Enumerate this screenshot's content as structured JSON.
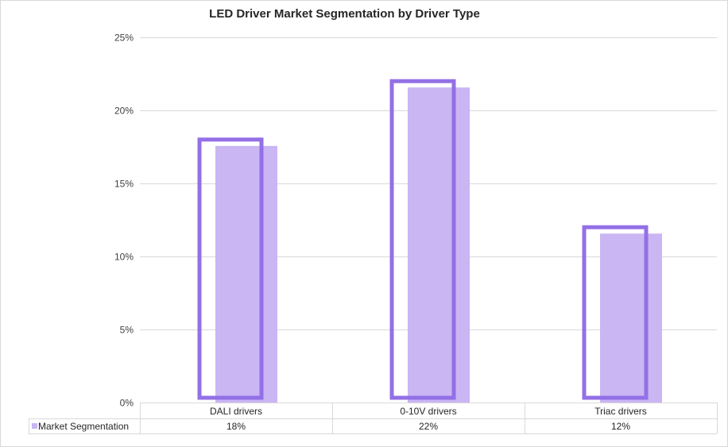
{
  "chart_data": {
    "type": "bar",
    "title": "LED Driver Market Segmentation by Driver Type",
    "categories": [
      "DALI drivers",
      "0-10V drivers",
      "Triac drivers"
    ],
    "series": [
      {
        "name": "Market Segmentation",
        "values": [
          0.18,
          0.22,
          0.12
        ],
        "labels": [
          "18%",
          "22%",
          "12%"
        ]
      }
    ],
    "ylim": [
      0,
      0.25
    ],
    "yticks": [
      0,
      0.05,
      0.1,
      0.15,
      0.2,
      0.25
    ],
    "ytick_labels": [
      "0%",
      "5%",
      "10%",
      "15%",
      "20%",
      "25%"
    ],
    "grid": true,
    "data_table": true,
    "colors": {
      "fill": "#c9b6f3",
      "outline": "#9370e6",
      "grid": "#d9d9d9",
      "text": "#404040"
    }
  }
}
